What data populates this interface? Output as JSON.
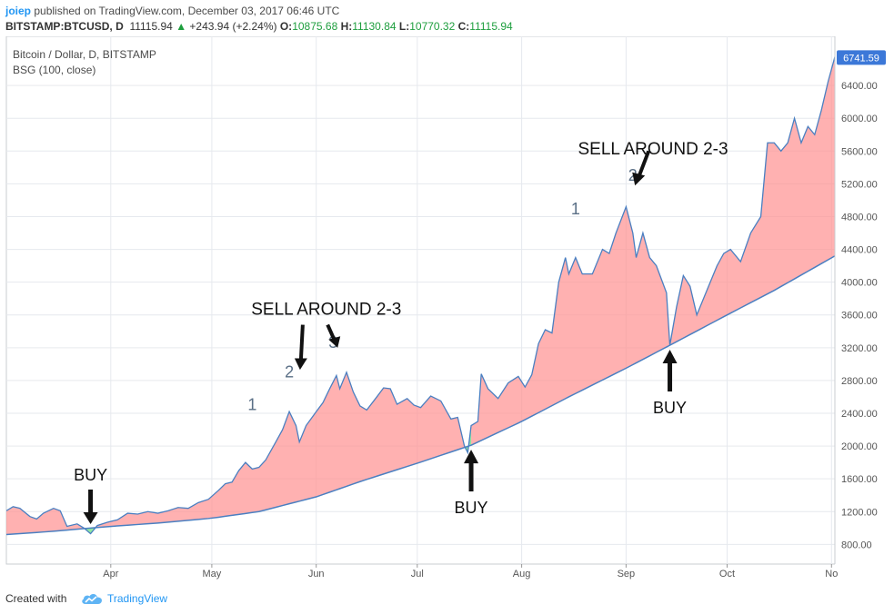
{
  "header": {
    "user": "joiep",
    "published": "published on TradingView.com, December 03, 2017 06:46 UTC",
    "symbol": "BITSTAMP:BTCUSD, D",
    "last": "11115.94",
    "change_arrow": "▲",
    "change": "+243.94 (+2.24%)",
    "open_label": "O:",
    "open": "10875.68",
    "high_label": "H:",
    "high": "11130.84",
    "low_label": "L:",
    "low": "10770.32",
    "close_label": "C:",
    "close": "11115.94"
  },
  "footer": {
    "created": "Created with",
    "brand": "TradingView",
    "logo_icon": "tradingview-cloud-icon"
  },
  "colors": {
    "price_line": "#4a7fc1",
    "fill_above": "#ff9090",
    "fill_below": "#90e8a0",
    "axis_text": "#555555",
    "grid": "#e6e9ee",
    "last_price_bg": "#3c78d8"
  },
  "chart_data": {
    "type": "area",
    "title": "Bitcoin / Dollar, D, BITSTAMP",
    "indicator": "BSG (100, close)",
    "last_price_label": "6741.59",
    "y_ticks": [
      "6400.00",
      "6000.00",
      "5600.00",
      "5200.00",
      "4800.00",
      "4400.00",
      "4000.00",
      "3600.00",
      "3200.00",
      "2800.00",
      "2400.00",
      "2000.00",
      "1600.00",
      "1200.00",
      "800.00"
    ],
    "ylim": [
      560,
      7000
    ],
    "x_ticks": [
      {
        "label": "Apr",
        "date": "2017-04-01"
      },
      {
        "label": "May",
        "date": "2017-05-01"
      },
      {
        "label": "Jun",
        "date": "2017-06-01"
      },
      {
        "label": "Jul",
        "date": "2017-07-01"
      },
      {
        "label": "Aug",
        "date": "2017-08-01"
      },
      {
        "label": "Sep",
        "date": "2017-09-01"
      },
      {
        "label": "Oct",
        "date": "2017-10-01"
      },
      {
        "label": "No",
        "date": "2017-11-01"
      }
    ],
    "xlim": [
      "2017-03-01",
      "2017-11-02"
    ],
    "series": [
      {
        "kind": "price",
        "points": [
          [
            "2017-03-01",
            1210
          ],
          [
            "2017-03-03",
            1260
          ],
          [
            "2017-03-05",
            1240
          ],
          [
            "2017-03-08",
            1140
          ],
          [
            "2017-03-10",
            1110
          ],
          [
            "2017-03-12",
            1180
          ],
          [
            "2017-03-15",
            1240
          ],
          [
            "2017-03-17",
            1210
          ],
          [
            "2017-03-19",
            1020
          ],
          [
            "2017-03-22",
            1050
          ],
          [
            "2017-03-24",
            1000
          ],
          [
            "2017-03-26",
            930
          ],
          [
            "2017-03-28",
            1030
          ],
          [
            "2017-03-31",
            1070
          ],
          [
            "2017-04-03",
            1100
          ],
          [
            "2017-04-06",
            1180
          ],
          [
            "2017-04-09",
            1170
          ],
          [
            "2017-04-12",
            1200
          ],
          [
            "2017-04-15",
            1180
          ],
          [
            "2017-04-18",
            1210
          ],
          [
            "2017-04-21",
            1250
          ],
          [
            "2017-04-24",
            1240
          ],
          [
            "2017-04-27",
            1310
          ],
          [
            "2017-04-30",
            1350
          ],
          [
            "2017-05-03",
            1460
          ],
          [
            "2017-05-05",
            1540
          ],
          [
            "2017-05-07",
            1560
          ],
          [
            "2017-05-09",
            1700
          ],
          [
            "2017-05-11",
            1800
          ],
          [
            "2017-05-13",
            1720
          ],
          [
            "2017-05-15",
            1740
          ],
          [
            "2017-05-17",
            1830
          ],
          [
            "2017-05-20",
            2050
          ],
          [
            "2017-05-22",
            2200
          ],
          [
            "2017-05-24",
            2420
          ],
          [
            "2017-05-26",
            2250
          ],
          [
            "2017-05-27",
            2050
          ],
          [
            "2017-05-29",
            2250
          ],
          [
            "2017-06-01",
            2420
          ],
          [
            "2017-06-03",
            2530
          ],
          [
            "2017-06-05",
            2700
          ],
          [
            "2017-06-07",
            2860
          ],
          [
            "2017-06-08",
            2700
          ],
          [
            "2017-06-10",
            2900
          ],
          [
            "2017-06-12",
            2660
          ],
          [
            "2017-06-14",
            2490
          ],
          [
            "2017-06-16",
            2440
          ],
          [
            "2017-06-19",
            2600
          ],
          [
            "2017-06-21",
            2710
          ],
          [
            "2017-06-23",
            2700
          ],
          [
            "2017-06-25",
            2510
          ],
          [
            "2017-06-28",
            2580
          ],
          [
            "2017-06-30",
            2500
          ],
          [
            "2017-07-02",
            2470
          ],
          [
            "2017-07-05",
            2610
          ],
          [
            "2017-07-08",
            2550
          ],
          [
            "2017-07-11",
            2330
          ],
          [
            "2017-07-13",
            2350
          ],
          [
            "2017-07-15",
            2000
          ],
          [
            "2017-07-16",
            1920
          ],
          [
            "2017-07-17",
            2250
          ],
          [
            "2017-07-19",
            2300
          ],
          [
            "2017-07-20",
            2880
          ],
          [
            "2017-07-22",
            2700
          ],
          [
            "2017-07-25",
            2580
          ],
          [
            "2017-07-28",
            2770
          ],
          [
            "2017-07-31",
            2850
          ],
          [
            "2017-08-02",
            2720
          ],
          [
            "2017-08-04",
            2870
          ],
          [
            "2017-08-06",
            3250
          ],
          [
            "2017-08-08",
            3420
          ],
          [
            "2017-08-10",
            3380
          ],
          [
            "2017-08-12",
            4000
          ],
          [
            "2017-08-14",
            4300
          ],
          [
            "2017-08-15",
            4100
          ],
          [
            "2017-08-17",
            4300
          ],
          [
            "2017-08-19",
            4100
          ],
          [
            "2017-08-22",
            4100
          ],
          [
            "2017-08-25",
            4400
          ],
          [
            "2017-08-27",
            4350
          ],
          [
            "2017-08-29",
            4600
          ],
          [
            "2017-09-01",
            4920
          ],
          [
            "2017-09-03",
            4600
          ],
          [
            "2017-09-04",
            4300
          ],
          [
            "2017-09-06",
            4600
          ],
          [
            "2017-09-08",
            4300
          ],
          [
            "2017-09-10",
            4200
          ],
          [
            "2017-09-13",
            3870
          ],
          [
            "2017-09-14",
            3230
          ],
          [
            "2017-09-16",
            3700
          ],
          [
            "2017-09-18",
            4080
          ],
          [
            "2017-09-20",
            3950
          ],
          [
            "2017-09-22",
            3600
          ],
          [
            "2017-09-25",
            3900
          ],
          [
            "2017-09-28",
            4200
          ],
          [
            "2017-09-30",
            4350
          ],
          [
            "2017-10-02",
            4400
          ],
          [
            "2017-10-05",
            4250
          ],
          [
            "2017-10-08",
            4600
          ],
          [
            "2017-10-11",
            4800
          ],
          [
            "2017-10-13",
            5700
          ],
          [
            "2017-10-15",
            5700
          ],
          [
            "2017-10-17",
            5600
          ],
          [
            "2017-10-19",
            5700
          ],
          [
            "2017-10-21",
            6000
          ],
          [
            "2017-10-23",
            5700
          ],
          [
            "2017-10-25",
            5900
          ],
          [
            "2017-10-27",
            5800
          ],
          [
            "2017-10-29",
            6100
          ],
          [
            "2017-10-31",
            6450
          ],
          [
            "2017-11-02",
            6750
          ]
        ]
      },
      {
        "kind": "bsg_baseline",
        "points": [
          [
            "2017-03-01",
            920
          ],
          [
            "2017-03-15",
            960
          ],
          [
            "2017-04-01",
            1020
          ],
          [
            "2017-04-15",
            1060
          ],
          [
            "2017-05-01",
            1120
          ],
          [
            "2017-05-15",
            1200
          ],
          [
            "2017-06-01",
            1380
          ],
          [
            "2017-06-15",
            1580
          ],
          [
            "2017-07-01",
            1790
          ],
          [
            "2017-07-17",
            2010
          ],
          [
            "2017-08-01",
            2300
          ],
          [
            "2017-08-15",
            2600
          ],
          [
            "2017-09-01",
            2950
          ],
          [
            "2017-09-14",
            3230
          ],
          [
            "2017-10-01",
            3600
          ],
          [
            "2017-10-15",
            3900
          ],
          [
            "2017-11-02",
            4320
          ]
        ]
      }
    ],
    "annotations": [
      {
        "text": "BUY",
        "date": "2017-03-26",
        "price": 1580,
        "arrow": "down"
      },
      {
        "text": "BUY",
        "date": "2017-07-17",
        "price": 1180,
        "arrow": "up"
      },
      {
        "text": "BUY",
        "date": "2017-09-14",
        "price": 2400,
        "arrow": "up"
      },
      {
        "text": "SELL AROUND 2-3",
        "date": "2017-06-04",
        "price": 3600
      },
      {
        "text": "SELL AROUND 2-3",
        "date": "2017-09-09",
        "price": 5560
      },
      {
        "text": "1",
        "date": "2017-05-13",
        "price": 2440,
        "kind": "count"
      },
      {
        "text": "2",
        "date": "2017-05-24",
        "price": 2840,
        "kind": "count"
      },
      {
        "text": "3",
        "date": "2017-06-06",
        "price": 3200,
        "kind": "count"
      },
      {
        "text": "1",
        "date": "2017-08-17",
        "price": 4830,
        "kind": "count"
      },
      {
        "text": "2",
        "date": "2017-09-03",
        "price": 5240,
        "kind": "count"
      }
    ]
  }
}
